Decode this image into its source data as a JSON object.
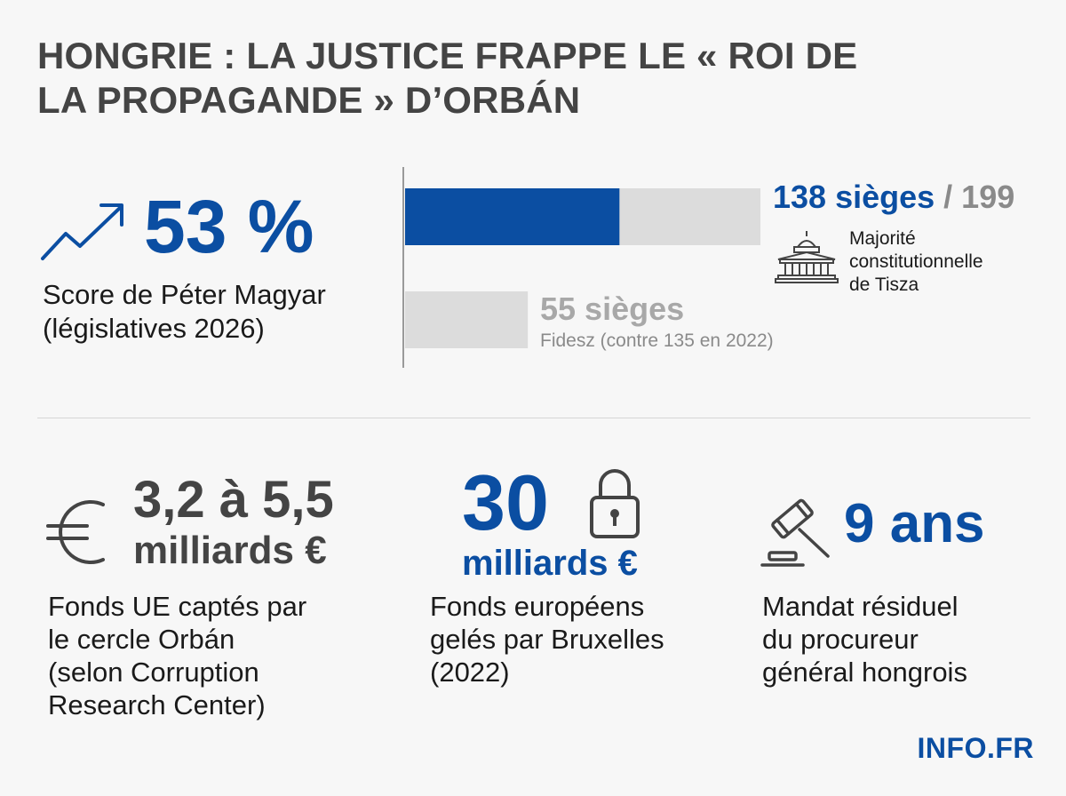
{
  "title": {
    "line1": "HONGRIE : LA JUSTICE FRAPPE LE « ROI DE",
    "line2": "LA PROPAGANDE » D’ORBÁN"
  },
  "score": {
    "value": "53 %",
    "caption_line1": "Score de Péter Magyar",
    "caption_line2": "(législatives 2026)",
    "icon": "trend-up-arrow-icon"
  },
  "seats": {
    "main_label": "138 sièges",
    "total_label": "/ 199",
    "majority_line1": "Majorité",
    "majority_line2": "constitutionnelle",
    "majority_line3": "de Tisza",
    "second_label": "55 sièges",
    "second_caption": "Fidesz (contre 135 en 2022)",
    "icon": "parliament-building-icon"
  },
  "chart_data": {
    "type": "bar",
    "orientation": "horizontal",
    "categories": [
      "Tisza",
      "Fidesz"
    ],
    "values": [
      138,
      55
    ],
    "total": 199,
    "colors": {
      "primary": "#0b4ea2",
      "background": "#dcdcdc"
    },
    "xlim": [
      0,
      199
    ]
  },
  "stats": {
    "euro": {
      "big1": "3,2 à 5,5",
      "big2": "milliards €",
      "caption_line1": "Fonds UE captés par",
      "caption_line2": "le cercle Orbán",
      "caption_line3": "(selon Corruption",
      "caption_line4": "Research Center)",
      "icon": "euro-icon"
    },
    "frozen": {
      "big1": "30",
      "big2": "milliards €",
      "caption_line1": "Fonds européens",
      "caption_line2": "gelés par Bruxelles",
      "caption_line3": "(2022)",
      "icon": "lock-icon"
    },
    "mandate": {
      "big1": "9 ans",
      "caption_line1": "Mandat résiduel",
      "caption_line2": "du procureur",
      "caption_line3": "général hongrois",
      "icon": "gavel-icon"
    }
  },
  "brand": "INFO.FR",
  "colors": {
    "accent": "#0b4ea2",
    "heading": "#444444",
    "muted": "#8a8a8a"
  }
}
